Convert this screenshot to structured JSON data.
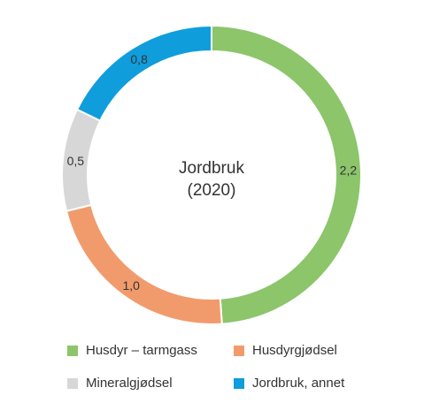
{
  "chart_data": {
    "type": "pie",
    "variant": "donut",
    "center_label": [
      "Jordbruk",
      "(2020)"
    ],
    "slices": [
      {
        "name": "Husdyr – tarmgass",
        "value": 2.2,
        "label": "2,2",
        "color": "#8cc56a"
      },
      {
        "name": "Husdyrgjødsel",
        "value": 1.0,
        "label": "1,0",
        "color": "#f19b6d"
      },
      {
        "name": "Mineralgjødsel",
        "value": 0.5,
        "label": "0,5",
        "color": "#d7d7d7"
      },
      {
        "name": "Jordbruk, annet",
        "value": 0.8,
        "label": "0,8",
        "color": "#0f9ddc"
      }
    ],
    "legend_position": "bottom"
  }
}
